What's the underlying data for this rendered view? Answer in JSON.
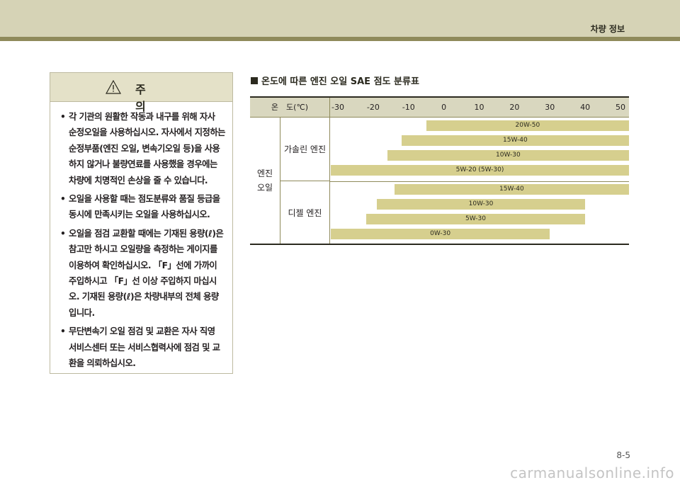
{
  "header": {
    "title": "차량 정보"
  },
  "caution": {
    "title": "주 의",
    "items": [
      "각 기관의 원활한 작동과 내구를 위해 자사 순정오일을 사용하십시오. 자사에서 지정하는 순정부품(엔진 오일, 변속기오일 등)을 사용하지 않거나 불량연료를 사용했을 경우에는 차량에 치명적인 손상을 줄 수 있습니다.",
      "오일을 사용할 때는 점도분류와 품질 등급을 동시에 만족시키는 오일을 사용하십시오.",
      "오일을 점검 교환할 때에는 기재된 용량(ℓ)은 참고만 하시고 오일량을 측정하는 게이지를 이용하여 확인하십시오. 「F」선에 가까이 주입하시고 「F」선 이상 주입하지 마십시오. 기재된 용량(ℓ)은 차량내부의 전체 용량입니다.",
      "무단변속기 오일 점검 및 교환은 자사 직영 서비스센터 또는 서비스협력사에 점검 및 교환을 의뢰하십시오."
    ]
  },
  "section": {
    "title": "온도에 따른 엔진 오일 SAE 점도 분류표",
    "temp_label": "온　도(℃)",
    "ticks": [
      "-30",
      "-20",
      "-10",
      "0",
      "10",
      "20",
      "30",
      "40",
      "50"
    ],
    "oil_label": "엔진 오일",
    "gasoline_label": "가솔린 엔진",
    "diesel_label": "디젤 엔진"
  },
  "chart_data": {
    "type": "range-bar",
    "x_unit": "℃",
    "xlim": [
      -30,
      50
    ],
    "groups": [
      {
        "name": "가솔린 엔진",
        "bars": [
          {
            "label": "20W-50",
            "from": -5,
            "to": 50
          },
          {
            "label": "15W-40",
            "from": -12,
            "to": 50
          },
          {
            "label": "10W-30",
            "from": -16,
            "to": 50
          },
          {
            "label": "5W-20 (5W-30)",
            "from": -30,
            "to": 50
          }
        ]
      },
      {
        "name": "디젤 엔진",
        "bars": [
          {
            "label": "15W-40",
            "from": -14,
            "to": 50
          },
          {
            "label": "10W-30",
            "from": -19,
            "to": 40
          },
          {
            "label": "5W-30",
            "from": -22,
            "to": 40
          },
          {
            "label": "0W-30",
            "from": -30,
            "to": 30
          }
        ]
      }
    ]
  },
  "page_number": "8-5",
  "watermark": "carmanualsonline.info"
}
